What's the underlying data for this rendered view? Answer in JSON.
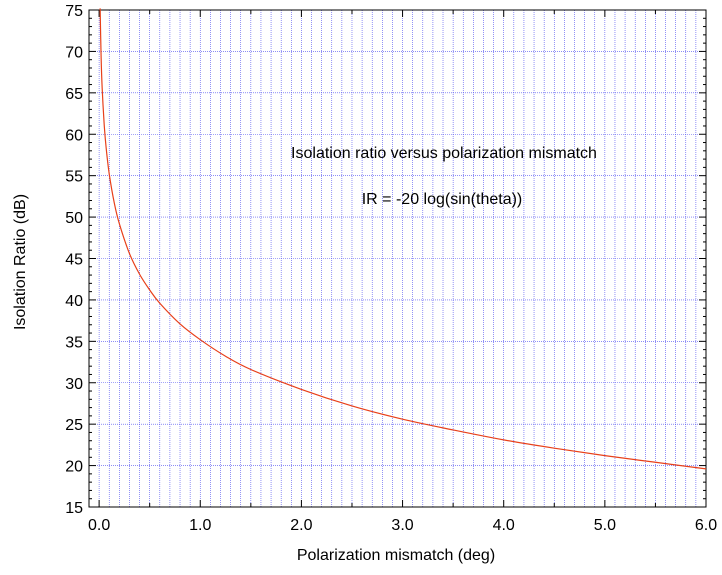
{
  "chart_data": {
    "type": "line",
    "title": "Isolation ratio versus polarization mismatch",
    "subtitle": "IR = -20 log(sin(theta))",
    "xlabel": "Polarization mismatch (deg)",
    "ylabel": "Isolation Ratio (dB)",
    "xlim": [
      -0.1,
      6.0
    ],
    "ylim": [
      15,
      75
    ],
    "x_ticks": [
      "0.0",
      "1.0",
      "2.0",
      "3.0",
      "4.0",
      "5.0",
      "6.0"
    ],
    "y_ticks": [
      "15",
      "20",
      "25",
      "30",
      "35",
      "40",
      "45",
      "50",
      "55",
      "60",
      "65",
      "70",
      "75"
    ],
    "grid": true,
    "grid_x_step": 0.1,
    "grid_y_step": 5,
    "series": [
      {
        "color": "#e8401a",
        "x": [
          0.01,
          0.02,
          0.03,
          0.05,
          0.07,
          0.1,
          0.15,
          0.2,
          0.3,
          0.4,
          0.5,
          0.6,
          0.8,
          1.0,
          1.25,
          1.5,
          2.0,
          2.5,
          3.0,
          3.5,
          4.0,
          4.5,
          5.0,
          5.5,
          6.0
        ],
        "values": [
          75.2,
          69.2,
          65.6,
          61.2,
          58.3,
          55.2,
          51.7,
          49.2,
          45.6,
          43.1,
          41.2,
          39.6,
          37.1,
          35.2,
          33.2,
          31.6,
          29.2,
          27.2,
          25.6,
          24.3,
          23.1,
          22.1,
          21.2,
          20.4,
          19.6
        ]
      }
    ],
    "colors": {
      "grid": "#4a4af0",
      "axis": "#000000"
    }
  }
}
